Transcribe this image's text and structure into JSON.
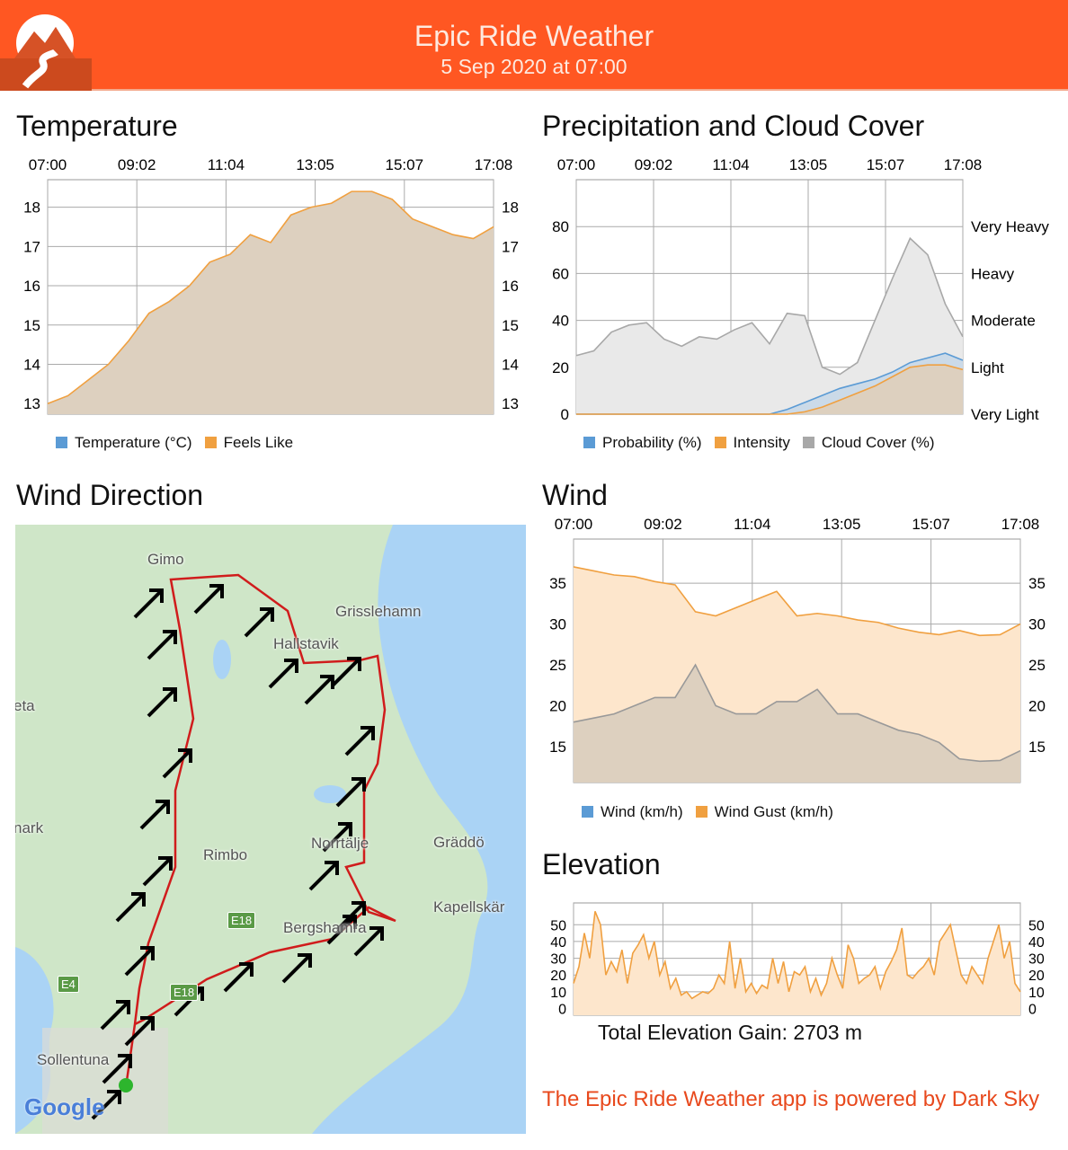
{
  "header": {
    "title": "Epic Ride Weather",
    "subtitle": "5 Sep 2020 at 07:00"
  },
  "colors": {
    "brand": "#ff5722",
    "orange": "#f0a040",
    "blue": "#5b9bd5",
    "grey": "#a8a8a8",
    "footer": "#e8491d"
  },
  "temperature": {
    "title": "Temperature",
    "xticks": [
      "07:00",
      "09:02",
      "11:04",
      "13:05",
      "15:07",
      "17:08"
    ],
    "yticks": [
      13,
      14,
      15,
      16,
      17,
      18
    ],
    "ylim": [
      12.73,
      18.7
    ],
    "legend": [
      "Temperature (°C)",
      "Feels Like"
    ],
    "feels_like": [
      13.0,
      13.2,
      13.6,
      14.0,
      14.6,
      15.3,
      15.6,
      16.0,
      16.6,
      16.8,
      17.3,
      17.1,
      17.8,
      18.0,
      18.1,
      18.4,
      18.4,
      18.2,
      17.7,
      17.5,
      17.3,
      17.2,
      17.5
    ]
  },
  "precip": {
    "title": "Precipitation and Cloud Cover",
    "xticks": [
      "07:00",
      "09:02",
      "11:04",
      "13:05",
      "15:07",
      "17:08"
    ],
    "yticks": [
      0,
      20,
      40,
      60,
      80
    ],
    "right_labels": [
      "Very Light",
      "Light",
      "Moderate",
      "Heavy",
      "Very Heavy"
    ],
    "ylim": [
      0,
      100
    ],
    "legend": [
      "Probability (%)",
      "Intensity",
      "Cloud Cover (%)"
    ],
    "cloud": [
      25,
      27,
      35,
      38,
      39,
      32,
      29,
      33,
      32,
      36,
      39,
      30,
      43,
      42,
      20,
      17,
      22,
      40,
      58,
      75,
      68,
      47,
      33
    ],
    "probability": [
      0,
      0,
      0,
      0,
      0,
      0,
      0,
      0,
      0,
      0,
      0,
      0,
      2,
      5,
      8,
      11,
      13,
      15,
      18,
      22,
      24,
      26,
      23
    ],
    "intensity": [
      0,
      0,
      0,
      0,
      0,
      0,
      0,
      0,
      0,
      0,
      0,
      0,
      0,
      1,
      3,
      6,
      9,
      12,
      16,
      20,
      21,
      21,
      19
    ]
  },
  "wind_direction": {
    "title": "Wind Direction",
    "places": [
      "Gimo",
      "Grisslehamn",
      "Hallstavik",
      "Rimbo",
      "Norrtälje",
      "Gräddö",
      "Kapellskär",
      "Bergshamra",
      "Sollentuna",
      "eta",
      "nark"
    ],
    "roads": [
      "E18",
      "E4",
      "E18"
    ],
    "map_logo": "Google"
  },
  "wind": {
    "title": "Wind",
    "xticks": [
      "07:00",
      "09:02",
      "11:04",
      "13:05",
      "15:07",
      "17:08"
    ],
    "yticks": [
      15,
      20,
      25,
      30,
      35
    ],
    "ylim": [
      10.6,
      40.4
    ],
    "legend": [
      "Wind (km/h)",
      "Wind Gust (km/h)"
    ],
    "wind": [
      18,
      18.5,
      19,
      20,
      21,
      21,
      25,
      20,
      19,
      19,
      20.5,
      20.5,
      22,
      19,
      19,
      18,
      17,
      16.5,
      15.5,
      13.5,
      13.2,
      13.3,
      14.5
    ],
    "gust": [
      37,
      36.5,
      36,
      35.8,
      35.2,
      34.8,
      31.5,
      31,
      32,
      33,
      34,
      31,
      31.3,
      31,
      30.5,
      30.2,
      29.5,
      29,
      28.7,
      29.2,
      28.6,
      28.7,
      30
    ]
  },
  "elevation": {
    "title": "Elevation",
    "yticks": [
      0,
      10,
      20,
      30,
      40,
      50
    ],
    "ylim": [
      -4,
      63
    ],
    "gain_text": "Total Elevation Gain: 2703 m",
    "values": [
      15,
      25,
      45,
      30,
      58,
      50,
      20,
      28,
      22,
      35,
      15,
      33,
      38,
      44,
      30,
      40,
      20,
      28,
      12,
      18,
      8,
      10,
      6,
      8,
      10,
      9,
      12,
      20,
      15,
      40,
      12,
      30,
      10,
      15,
      9,
      14,
      12,
      30,
      15,
      28,
      10,
      22,
      20,
      25,
      10,
      18,
      8,
      15,
      30,
      20,
      12,
      38,
      30,
      15,
      18,
      20,
      25,
      12,
      22,
      28,
      35,
      48,
      20,
      18,
      22,
      25,
      30,
      20,
      40,
      45,
      50,
      35,
      20,
      15,
      25,
      20,
      15,
      30,
      40,
      50,
      30,
      40,
      15,
      10
    ]
  },
  "footer": "The Epic Ride Weather app is powered by Dark Sky"
}
